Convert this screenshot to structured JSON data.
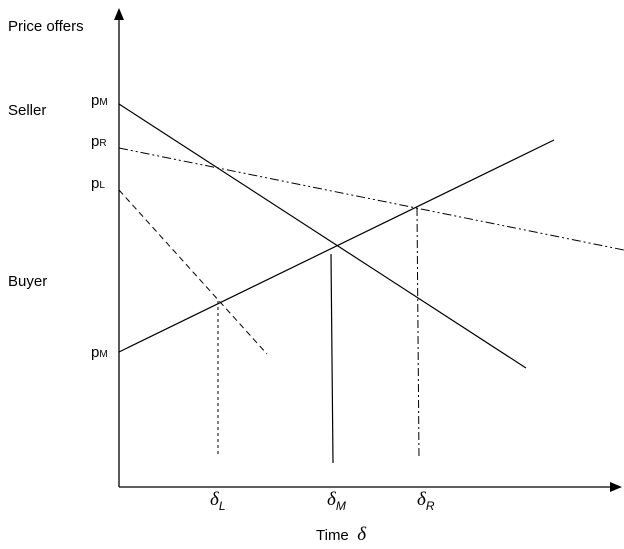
{
  "axes": {
    "y_title": "Price offers",
    "x_title": "Time",
    "x_title_symbol": "δ"
  },
  "side_labels": {
    "seller": "Seller",
    "buyer": "Buyer"
  },
  "price_labels": {
    "p_m_seller": {
      "base": "p",
      "sub": "M"
    },
    "p_r": {
      "base": "p",
      "sub": "R"
    },
    "p_l": {
      "base": "p",
      "sub": "L"
    },
    "p_m_buyer": {
      "base": "p",
      "sub": "M"
    }
  },
  "time_labels": {
    "delta_l": {
      "base": "δ",
      "sub": "L"
    },
    "delta_m": {
      "base": "δ",
      "sub": "M"
    },
    "delta_r": {
      "base": "δ",
      "sub": "R"
    }
  },
  "line_styles": {
    "seller_m": "solid",
    "seller_r": "dash-dot-dot",
    "seller_l": "dashed",
    "buyer": "solid",
    "drop_l": "dashed",
    "drop_m": "solid",
    "drop_r": "dash-dot"
  },
  "colors": {
    "ink": "#000000",
    "background": "#ffffff"
  }
}
